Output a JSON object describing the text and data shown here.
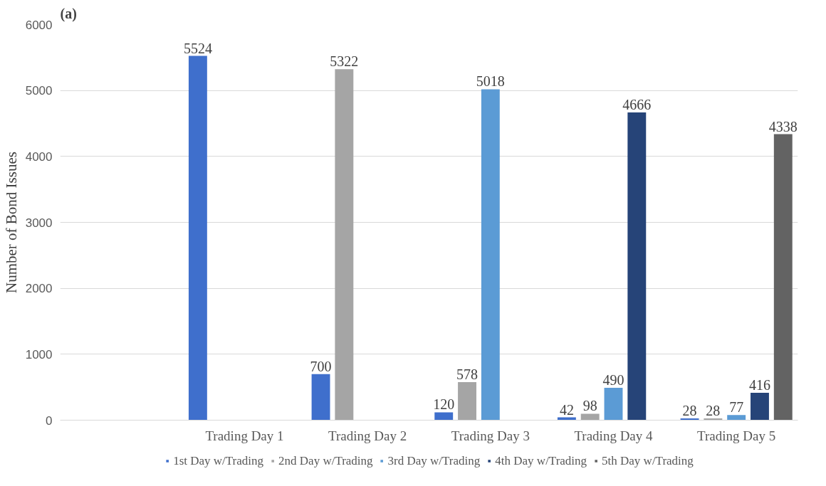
{
  "chart_data": {
    "type": "bar",
    "title": "(a)",
    "ylabel": "Number of Bond Issues",
    "categories": [
      null,
      "Trading Day 1",
      "Trading Day 2",
      "Trading Day 3",
      "Trading Day 4",
      "Trading Day 5"
    ],
    "series": [
      {
        "name": "1st Day w/Trading",
        "color": "#3f6fcc",
        "values": [
          null,
          5524,
          700,
          120,
          42,
          28
        ]
      },
      {
        "name": "2nd Day w/Trading",
        "color": "#a5a5a5",
        "values": [
          null,
          null,
          5322,
          578,
          98,
          28
        ]
      },
      {
        "name": "3rd Day w/Trading",
        "color": "#5b9bd5",
        "values": [
          null,
          null,
          null,
          5018,
          490,
          77
        ]
      },
      {
        "name": "4th Day w/Trading",
        "color": "#264478",
        "values": [
          null,
          null,
          null,
          null,
          4666,
          416
        ]
      },
      {
        "name": "5th Day w/Trading",
        "color": "#636363",
        "values": [
          null,
          null,
          null,
          null,
          null,
          4338
        ]
      }
    ],
    "ylim": [
      0,
      6000
    ],
    "yticks": [
      0,
      1000,
      2000,
      3000,
      4000,
      5000,
      6000
    ],
    "grid": "y",
    "legend": "bottom",
    "data_labels": true
  }
}
